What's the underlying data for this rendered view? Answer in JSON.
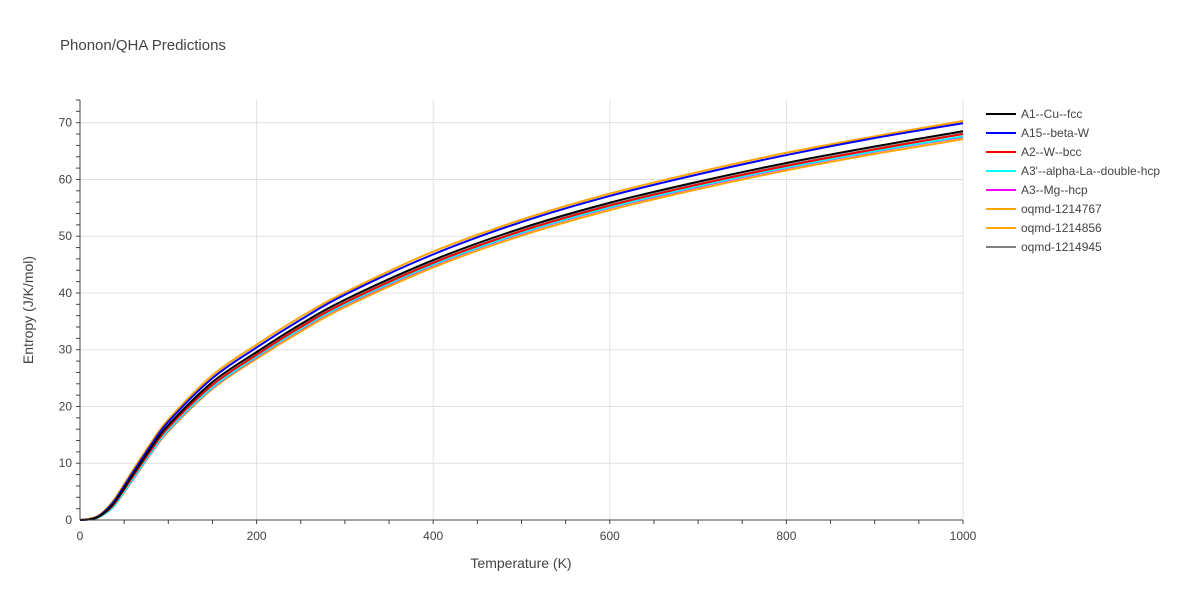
{
  "chart_data": {
    "type": "line",
    "title": "Phonon/QHA Predictions",
    "xlabel": "Temperature (K)",
    "ylabel": "Entropy (J/K/mol)",
    "xlim": [
      0,
      1000
    ],
    "ylim": [
      0,
      74
    ],
    "xticks": [
      0,
      200,
      400,
      600,
      800,
      1000
    ],
    "yticks": [
      0,
      10,
      20,
      30,
      40,
      50,
      60,
      70
    ],
    "grid": true,
    "legend_position": "right",
    "x": [
      0,
      10,
      20,
      30,
      40,
      60,
      80,
      100,
      150,
      200,
      250,
      300,
      400,
      500,
      600,
      700,
      800,
      900,
      1000
    ],
    "series": [
      {
        "name": "A1--Cu--fcc",
        "color": "#000000",
        "values": [
          0,
          0.1,
          0.5,
          1.6,
          3.3,
          8.0,
          12.6,
          16.7,
          24.3,
          29.6,
          34.5,
          38.8,
          45.8,
          51.4,
          55.9,
          59.6,
          62.9,
          65.8,
          68.5
        ]
      },
      {
        "name": "A15--beta-W",
        "color": "#0000ff",
        "values": [
          0,
          0.1,
          0.6,
          1.8,
          3.6,
          8.4,
          13.1,
          17.3,
          25.0,
          30.4,
          35.3,
          39.7,
          46.8,
          52.5,
          57.1,
          60.9,
          64.3,
          67.3,
          69.9
        ]
      },
      {
        "name": "A2--W--bcc",
        "color": "#ff0000",
        "values": [
          0,
          0.1,
          0.5,
          1.5,
          3.1,
          7.7,
          12.2,
          16.3,
          23.8,
          29.1,
          34.0,
          38.3,
          45.3,
          50.9,
          55.4,
          59.1,
          62.4,
          65.3,
          68.0
        ]
      },
      {
        "name": "A3'--alpha-La--double-hcp",
        "color": "#00ffff",
        "values": [
          0,
          0.1,
          0.4,
          1.3,
          2.8,
          7.3,
          11.8,
          15.9,
          23.4,
          28.8,
          33.7,
          38.0,
          45.0,
          50.6,
          55.1,
          58.8,
          62.1,
          65.0,
          67.6
        ]
      },
      {
        "name": "A3--Mg--hcp",
        "color": "#ff00ff",
        "values": [
          0,
          0.1,
          0.4,
          1.3,
          2.8,
          7.2,
          11.7,
          15.8,
          23.3,
          28.7,
          33.6,
          37.9,
          44.9,
          50.5,
          55.0,
          58.7,
          62.0,
          64.9,
          67.5
        ]
      },
      {
        "name": "oqmd-1214767",
        "color": "#ffa500",
        "values": [
          0,
          0.1,
          0.4,
          1.3,
          2.7,
          7.1,
          11.6,
          15.6,
          23.1,
          28.4,
          33.2,
          37.5,
          44.5,
          50.1,
          54.6,
          58.3,
          61.6,
          64.5,
          67.1
        ]
      },
      {
        "name": "oqmd-1214856",
        "color": "#ffa500",
        "values": [
          0,
          0.2,
          0.7,
          2.0,
          3.9,
          8.8,
          13.5,
          17.7,
          25.5,
          30.9,
          35.8,
          40.1,
          47.3,
          52.9,
          57.5,
          61.3,
          64.7,
          67.6,
          70.3
        ]
      },
      {
        "name": "oqmd-1214945",
        "color": "#808080",
        "values": [
          0,
          0.1,
          0.5,
          1.5,
          3.1,
          7.7,
          12.2,
          16.3,
          23.8,
          29.2,
          34.1,
          38.4,
          45.4,
          51.0,
          55.5,
          59.2,
          62.5,
          65.4,
          68.1
        ]
      }
    ]
  }
}
